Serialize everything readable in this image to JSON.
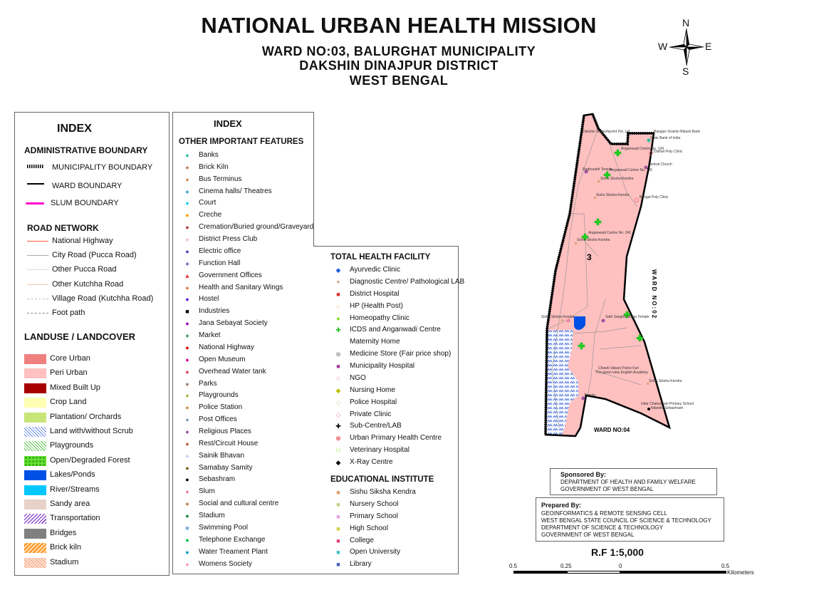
{
  "header": {
    "title": "NATIONAL URBAN HEALTH MISSION",
    "line1": "WARD NO:03, BALURGHAT MUNICIPALITY",
    "line2": "DAKSHIN DINAJPUR DISTRICT",
    "line3": "WEST BENGAL"
  },
  "compass": {
    "n": "N",
    "s": "S",
    "e": "E",
    "w": "W"
  },
  "index_left": {
    "title": "INDEX",
    "admin_title": "ADMINISTRATIVE BOUNDARY",
    "admin": [
      {
        "label": "MUNICIPALITY BOUNDARY",
        "style": "hatched"
      },
      {
        "label": "WARD BOUNDARY",
        "color": "#000000"
      },
      {
        "label": "SLUM BOUNDARY",
        "color": "#ff00cc"
      }
    ],
    "road_title": "ROAD NETWORK",
    "roads": [
      {
        "label": "National Highway",
        "color": "#ff5a3c"
      },
      {
        "label": "City Road (Pucca Road)",
        "color": "#aaaaaa"
      },
      {
        "label": "Other Pucca Road",
        "color": "#dddddd"
      },
      {
        "label": "Other Kutchha Road",
        "color": "#f5c8b0"
      },
      {
        "label": "Village Road (Kutchha Road)",
        "color": "#bbbbbb"
      },
      {
        "label": "Foot path",
        "color": "#888888"
      }
    ],
    "landuse_title": "LANDUSE / LANDCOVER",
    "landuse": [
      {
        "label": "Core Urban",
        "color": "#f08080"
      },
      {
        "label": "Peri Urban",
        "color": "#ffc0c0"
      },
      {
        "label": "Mixed Built Up",
        "color": "#a80000"
      },
      {
        "label": "Crop Land",
        "color": "#ffffb4"
      },
      {
        "label": "Plantation/ Orchards",
        "color": "#c8e678"
      },
      {
        "label": "Land with/without Scrub",
        "color": "#c8d8ff"
      },
      {
        "label": "Playgrounds",
        "color": "#a0e080"
      },
      {
        "label": "Open/Degraded Forest",
        "color": "#50d020"
      },
      {
        "label": "Lakes/Ponds",
        "color": "#0050e6"
      },
      {
        "label": "River/Streams",
        "color": "#00c8ff"
      },
      {
        "label": "Sandy area",
        "color": "#e6d2c8"
      },
      {
        "label": "Transportation",
        "color": "#b070e0"
      },
      {
        "label": "Bridges",
        "color": "#808080"
      },
      {
        "label": "Brick kiln",
        "color": "#ffa030"
      },
      {
        "label": "Stadium",
        "color": "#ffc8a0"
      }
    ]
  },
  "index_mid": {
    "title": "INDEX",
    "features_title": "OTHER IMPORTANT FEATURES",
    "features": [
      {
        "label": "Banks",
        "color": "#30c0a0",
        "sym": "●"
      },
      {
        "label": "Brick Kiln",
        "color": "#c08060",
        "sym": "●"
      },
      {
        "label": "Bus Terminus",
        "color": "#d09060",
        "sym": "●"
      },
      {
        "label": "Cinema halls/ Theatres",
        "color": "#40a0e0",
        "sym": "●"
      },
      {
        "label": "Court",
        "color": "#20d0e0",
        "sym": "●"
      },
      {
        "label": "Creche",
        "color": "#ffa000",
        "sym": "●"
      },
      {
        "label": "Cremation/Buried ground/Graveyard",
        "color": "#b04040",
        "sym": "●"
      },
      {
        "label": "District Press Club",
        "color": "#f0c0d0",
        "sym": "●"
      },
      {
        "label": "Electric office",
        "color": "#6040c0",
        "sym": "●"
      },
      {
        "label": "Function Hall",
        "color": "#8060c0",
        "sym": "●"
      },
      {
        "label": "Government Offices",
        "color": "#e04040",
        "sym": "▲"
      },
      {
        "label": "Health and Sanitary Wings",
        "color": "#e08040",
        "sym": "●"
      },
      {
        "label": "Hostel",
        "color": "#6020e0",
        "sym": "●"
      },
      {
        "label": "Industries",
        "color": "#000000",
        "sym": "■"
      },
      {
        "label": "Jana Sebayat Society",
        "color": "#a000c0",
        "sym": "●"
      },
      {
        "label": "Market",
        "color": "#40a060",
        "sym": "●"
      },
      {
        "label": "National Highway",
        "color": "#e00000",
        "sym": "●"
      },
      {
        "label": "Open Museum",
        "color": "#e000a0",
        "sym": "●"
      },
      {
        "label": "Overhead Water tank",
        "color": "#e04060",
        "sym": "●"
      },
      {
        "label": "Parks",
        "color": "#a08070",
        "sym": "●"
      },
      {
        "label": "Playgrounds",
        "color": "#a0c040",
        "sym": "●"
      },
      {
        "label": "Police Station",
        "color": "#d09040",
        "sym": "●"
      },
      {
        "label": "Post Offices",
        "color": "#80a0c0",
        "sym": "●"
      },
      {
        "label": "Religious Places",
        "color": "#a050a0",
        "sym": "●"
      },
      {
        "label": "Rest/Circuit House",
        "color": "#c06040",
        "sym": "●"
      },
      {
        "label": "Sainik Bhavan",
        "color": "#c0d0f0",
        "sym": "●"
      },
      {
        "label": "Samabay Samity",
        "color": "#806020",
        "sym": "●"
      },
      {
        "label": "Sebashram",
        "color": "#000000",
        "sym": "●"
      },
      {
        "label": "Slum",
        "color": "#f080a0",
        "sym": "●"
      },
      {
        "label": "Social and cultural centre",
        "color": "#c08040",
        "sym": "●"
      },
      {
        "label": "Stadium",
        "color": "#208040",
        "sym": "●"
      },
      {
        "label": "Swimming Pool",
        "color": "#80b0e0",
        "sym": "■"
      },
      {
        "label": "Telephone Exchange",
        "color": "#00c040",
        "sym": "●"
      },
      {
        "label": "Water Treament Plant",
        "color": "#00a0c0",
        "sym": "●"
      },
      {
        "label": "Womens Society",
        "color": "#f0a0c0",
        "sym": "●"
      }
    ]
  },
  "health": {
    "title": "TOTAL HEALTH FACILITY",
    "items": [
      {
        "label": "Ayurvedic Clinic",
        "color": "#2060e0",
        "sym": "◆"
      },
      {
        "label": "Diagnostic Centre/ Pathological LAB",
        "color": "#a05030",
        "sym": "+"
      },
      {
        "label": "District Hospital",
        "color": "#e03030",
        "sym": "■"
      },
      {
        "label": "HP (Health Post)",
        "color": "#f0c080",
        "sym": "○"
      },
      {
        "label": "Homeopathy Clinic",
        "color": "#80e020",
        "sym": "●"
      },
      {
        "label": "ICDS and Anganwadi Centre",
        "color": "#20c020",
        "sym": "✚"
      },
      {
        "label": "Maternity Home",
        "color": "#ffffff",
        "sym": ""
      },
      {
        "label": "Medicine Store (Fair price shop)",
        "color": "#808080",
        "sym": "⊕"
      },
      {
        "label": "Municipality Hospital",
        "color": "#a040a0",
        "sym": "■"
      },
      {
        "label": "NGO",
        "color": "#f08080",
        "sym": "○"
      },
      {
        "label": "Nursing Home",
        "color": "#c0c000",
        "sym": "◆"
      },
      {
        "label": "Police Hospital",
        "color": "#c0e0a0",
        "sym": "◇"
      },
      {
        "label": "Private Clinic",
        "color": "#f09090",
        "sym": "◇"
      },
      {
        "label": "Sub-Centre/LAB",
        "color": "#000000",
        "sym": "✚"
      },
      {
        "label": "Urban Primary Health Centre",
        "color": "#e02020",
        "sym": "⊕"
      },
      {
        "label": "Veterinary Hospital",
        "color": "#c0f080",
        "sym": "H"
      },
      {
        "label": "X-Ray Centre",
        "color": "#000000",
        "sym": "◆"
      }
    ]
  },
  "education": {
    "title": "EDUCATIONAL INSTITUTE",
    "items": [
      {
        "label": "Sishu Siksha Kendra",
        "color": "#e0a070",
        "sym": "■"
      },
      {
        "label": "Nursery School",
        "color": "#c0d080",
        "sym": "■"
      },
      {
        "label": "Primary School",
        "color": "#e0a0e0",
        "sym": "■"
      },
      {
        "label": "High School",
        "color": "#d0d040",
        "sym": "■"
      },
      {
        "label": "College",
        "color": "#e04080",
        "sym": "■"
      },
      {
        "label": "Open University",
        "color": "#40c0c0",
        "sym": "■"
      },
      {
        "label": "Library",
        "color": "#4060c0",
        "sym": "■"
      }
    ]
  },
  "map": {
    "ward_label": "3",
    "ward_02": "WARD NO:02",
    "ward_04": "WARD NO:04",
    "labels": {
      "l1": "Dakshin Maheshpoint Pvt. Ltd",
      "l2": "Bangiyo Gramin Bikash Bank",
      "l3": "State Bank of India",
      "l4": "Anganwadi Centre No. 134",
      "l5": "Dishari Poly Clinic",
      "l6": "Central Church",
      "l7": "Raghunath Temple",
      "l8": "Anganwadi Centre No. 135",
      "l9": "Sishu Siksha Kendra",
      "l10": "Sishu Siksha Kendra",
      "l11": "Bengal Poly Clinic",
      "l12": "Anganwadi Centre No. 241",
      "l13": "Sishu Siksha Kendra",
      "l14": "Sishu Siksha Kendra",
      "l15": "Sath Sangha Durga Temple",
      "l16": "Chawk Vabani Police Fari",
      "l17": "The green view English Academy",
      "l18": "Sishu Siksha Kendra",
      "l19": "Uttar Chakvabani Primary School",
      "l20": "Nibedita Sebashram",
      "l21": "Temple"
    }
  },
  "sponsor": {
    "title": "Sponsored By:",
    "line1": "DEPARTMENT OF HEALTH AND FAMILY WELFARE",
    "line2": "GOVERNMENT OF WEST BENGAL"
  },
  "prepared": {
    "title": "Prepared By:",
    "line1": "GEOINFORMATICS & REMOTE SENSING CELL",
    "line2": "WEST BENGAL STATE COUNCIL OF SCIENCE & TECHNOLOGY",
    "line3": "DEPARTMENT OF SCIENCE & TECHNOLOGY",
    "line4": "GOVERNMENT OF WEST BENGAL"
  },
  "scale": {
    "rf": "R.F 1:5,000",
    "ticks": [
      "0.5",
      "0.25",
      "0",
      "0.5"
    ],
    "unit": "Kilometers"
  }
}
